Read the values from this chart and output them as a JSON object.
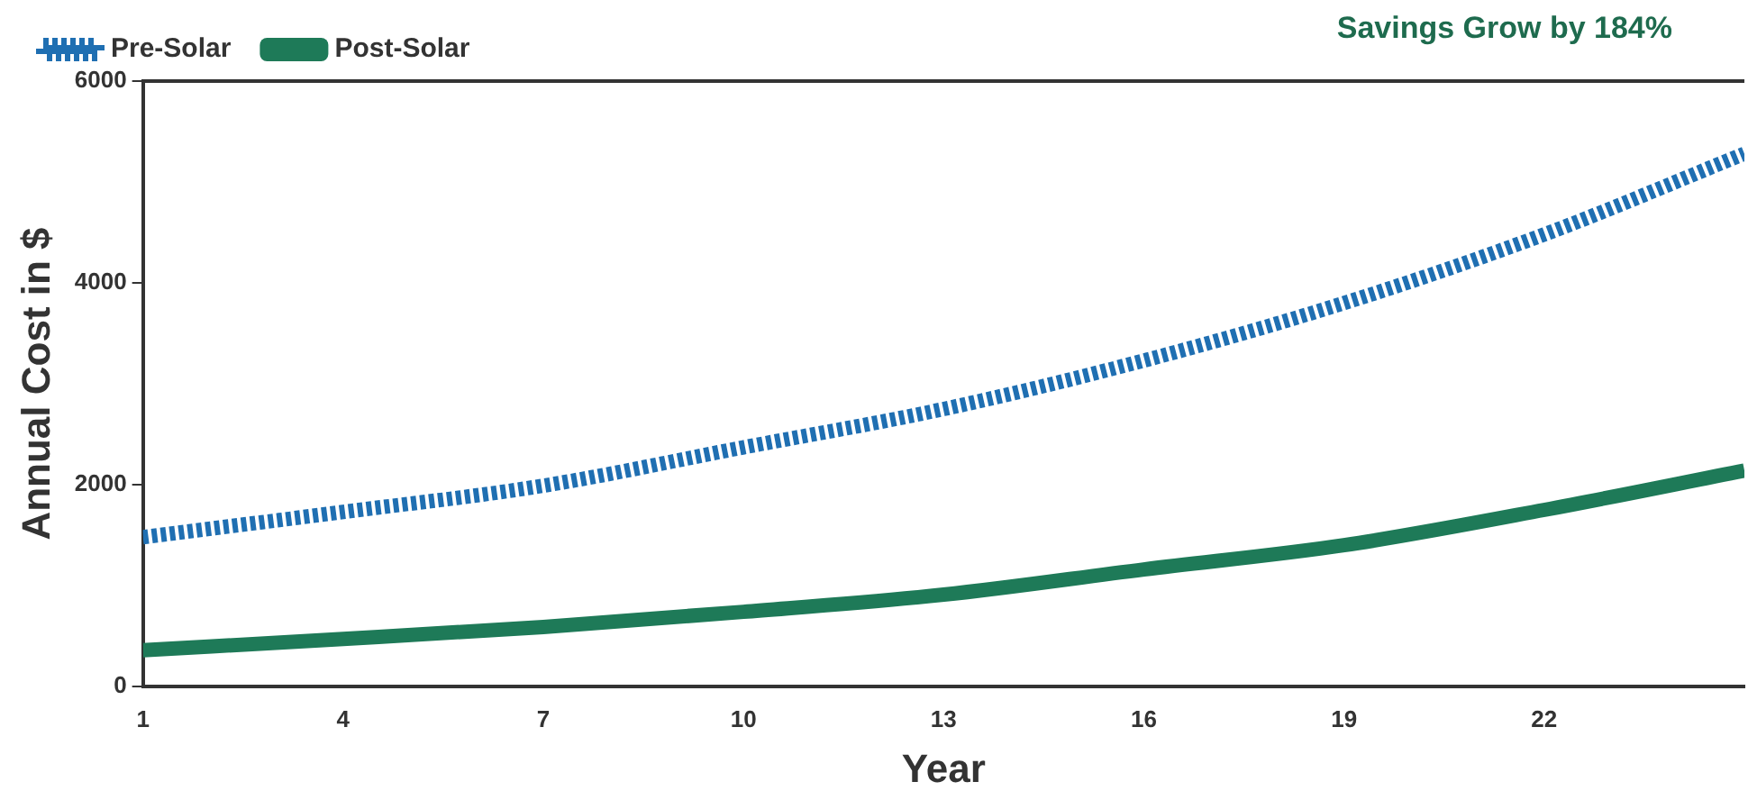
{
  "chart_data": {
    "type": "line",
    "xlabel": "Year",
    "ylabel": "Annual Cost in $",
    "annotations": [
      "Savings Grow by 184%"
    ],
    "x": [
      1,
      4,
      7,
      10,
      13,
      16,
      19,
      22,
      25
    ],
    "series": [
      {
        "name": "Pre-Solar",
        "color": "#1f6fb2",
        "line_style": "dotted",
        "values": [
          1480,
          1730,
          1990,
          2370,
          2750,
          3230,
          3800,
          4480,
          5280
        ]
      },
      {
        "name": "Post-Solar",
        "color": "#1e7a58",
        "line_style": "solid",
        "values": [
          360,
          470,
          590,
          740,
          910,
          1160,
          1400,
          1750,
          2140
        ]
      }
    ],
    "xlim": [
      1,
      25
    ],
    "xticks": [
      1,
      4,
      7,
      10,
      13,
      16,
      19,
      22
    ],
    "ylim": [
      0,
      6000
    ],
    "yticks": [
      0,
      2000,
      4000,
      6000
    ],
    "grid": false,
    "legend": "top left",
    "marker": "none"
  }
}
